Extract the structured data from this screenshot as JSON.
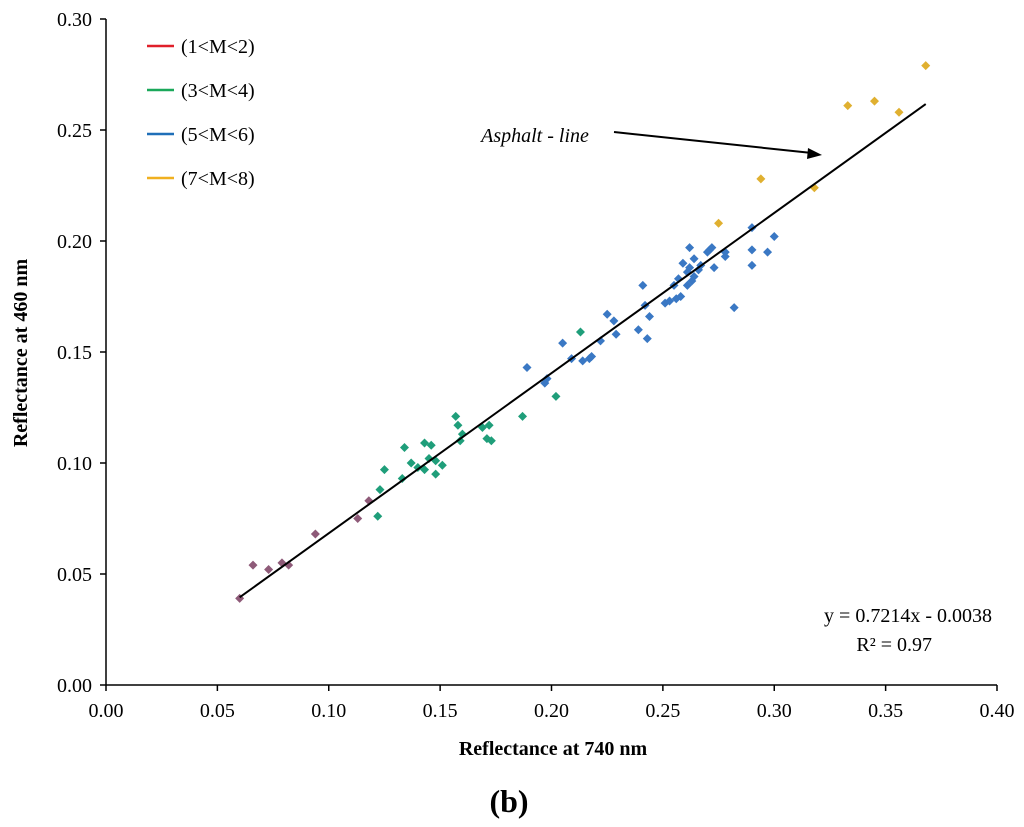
{
  "chart_data": {
    "type": "scatter",
    "title": "",
    "xlabel": "Reflectance at 740 nm",
    "ylabel": "Reflectance at 460 nm",
    "xlim": [
      0.0,
      0.4
    ],
    "ylim": [
      0.0,
      0.3
    ],
    "xticks": [
      "0.00",
      "0.05",
      "0.10",
      "0.15",
      "0.20",
      "0.25",
      "0.30",
      "0.35",
      "0.40"
    ],
    "yticks": [
      "0.00",
      "0.05",
      "0.10",
      "0.15",
      "0.20",
      "0.25",
      "0.30"
    ],
    "grid": false,
    "legend_position": "top-left",
    "series": [
      {
        "name": "(1<M<2)",
        "color": "#e0202a",
        "marker_color": "#8e5a78",
        "points": [
          [
            0.06,
            0.039
          ],
          [
            0.066,
            0.054
          ],
          [
            0.073,
            0.052
          ],
          [
            0.079,
            0.055
          ],
          [
            0.082,
            0.054
          ],
          [
            0.094,
            0.068
          ],
          [
            0.113,
            0.075
          ],
          [
            0.118,
            0.083
          ]
        ]
      },
      {
        "name": "(3<M<4)",
        "color": "#1aa85a",
        "marker_color": "#1f9e7a",
        "points": [
          [
            0.122,
            0.076
          ],
          [
            0.123,
            0.088
          ],
          [
            0.125,
            0.097
          ],
          [
            0.133,
            0.093
          ],
          [
            0.134,
            0.107
          ],
          [
            0.137,
            0.1
          ],
          [
            0.14,
            0.098
          ],
          [
            0.143,
            0.097
          ],
          [
            0.143,
            0.109
          ],
          [
            0.145,
            0.102
          ],
          [
            0.146,
            0.108
          ],
          [
            0.148,
            0.095
          ],
          [
            0.148,
            0.101
          ],
          [
            0.151,
            0.099
          ],
          [
            0.157,
            0.121
          ],
          [
            0.158,
            0.117
          ],
          [
            0.159,
            0.11
          ],
          [
            0.16,
            0.113
          ],
          [
            0.169,
            0.116
          ],
          [
            0.171,
            0.111
          ],
          [
            0.172,
            0.117
          ],
          [
            0.173,
            0.11
          ],
          [
            0.187,
            0.121
          ],
          [
            0.202,
            0.13
          ],
          [
            0.213,
            0.159
          ]
        ]
      },
      {
        "name": "(5<M<6)",
        "color": "#1f6fb8",
        "marker_color": "#3a78c4",
        "points": [
          [
            0.189,
            0.143
          ],
          [
            0.197,
            0.136
          ],
          [
            0.198,
            0.138
          ],
          [
            0.205,
            0.154
          ],
          [
            0.209,
            0.147
          ],
          [
            0.214,
            0.146
          ],
          [
            0.217,
            0.147
          ],
          [
            0.218,
            0.148
          ],
          [
            0.222,
            0.155
          ],
          [
            0.225,
            0.167
          ],
          [
            0.228,
            0.164
          ],
          [
            0.229,
            0.158
          ],
          [
            0.239,
            0.16
          ],
          [
            0.241,
            0.18
          ],
          [
            0.242,
            0.171
          ],
          [
            0.243,
            0.156
          ],
          [
            0.244,
            0.166
          ],
          [
            0.251,
            0.172
          ],
          [
            0.253,
            0.173
          ],
          [
            0.255,
            0.18
          ],
          [
            0.256,
            0.174
          ],
          [
            0.257,
            0.183
          ],
          [
            0.258,
            0.175
          ],
          [
            0.259,
            0.19
          ],
          [
            0.261,
            0.186
          ],
          [
            0.261,
            0.18
          ],
          [
            0.262,
            0.197
          ],
          [
            0.262,
            0.188
          ],
          [
            0.263,
            0.182
          ],
          [
            0.264,
            0.192
          ],
          [
            0.264,
            0.184
          ],
          [
            0.266,
            0.187
          ],
          [
            0.267,
            0.189
          ],
          [
            0.27,
            0.195
          ],
          [
            0.271,
            0.196
          ],
          [
            0.272,
            0.197
          ],
          [
            0.273,
            0.188
          ],
          [
            0.278,
            0.193
          ],
          [
            0.278,
            0.195
          ],
          [
            0.282,
            0.17
          ],
          [
            0.29,
            0.206
          ],
          [
            0.29,
            0.196
          ],
          [
            0.29,
            0.189
          ],
          [
            0.297,
            0.195
          ],
          [
            0.3,
            0.202
          ]
        ]
      },
      {
        "name": "(7<M<8)",
        "color": "#f0b020",
        "marker_color": "#e0b030",
        "points": [
          [
            0.275,
            0.208
          ],
          [
            0.294,
            0.228
          ],
          [
            0.318,
            0.224
          ],
          [
            0.333,
            0.261
          ],
          [
            0.345,
            0.263
          ],
          [
            0.356,
            0.258
          ],
          [
            0.368,
            0.279
          ]
        ]
      }
    ],
    "regression_line": {
      "x": [
        0.06,
        0.368
      ],
      "slope": 0.7214,
      "intercept": -0.0038
    },
    "annotations": {
      "line_label": "Asphalt - line",
      "equation": "y = 0.7214x - 0.0038",
      "r_squared": "R² = 0.97"
    },
    "panel_label": "(b)"
  }
}
